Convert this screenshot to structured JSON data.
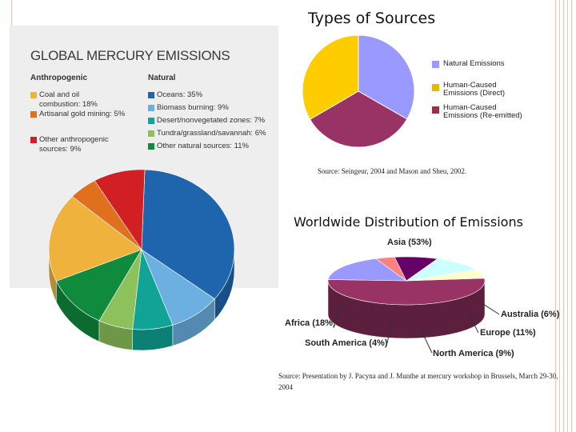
{
  "slide": {
    "types_title": "Types of Sources",
    "types_source": "Source: Seingeur, 2004 and Mason and Sheu, 2002.",
    "world_title": "Worldwide Distribution of Emissions",
    "world_source": "Source: Presentation by J. Pacyna and J. Munthe at mercury workshop in Brussels, March 29-30, 2004"
  },
  "chart_data": [
    {
      "type": "pie",
      "title": "GLOBAL MERCURY EMISSIONS",
      "groups": [
        {
          "name": "Anthropogenic",
          "items": [
            {
              "label": "Coal and oil combustion: 18%",
              "line1": "Coal and oil",
              "line2": "combustion: 18%",
              "value": 18,
              "color": "#eeb23d"
            },
            {
              "label": "Artisanal gold mining: 5%",
              "line1": "Artisanal gold mining: 5%",
              "line2": "",
              "value": 5,
              "color": "#e0701e"
            },
            {
              "label": "Other anthropogenic sources: 9%",
              "line1": "Other anthropogenic",
              "line2": "sources: 9%",
              "value": 9,
              "color": "#d11f24"
            }
          ]
        },
        {
          "name": "Natural",
          "items": [
            {
              "label": "Oceans: 35%",
              "line1": "Oceans: 35%",
              "line2": "",
              "value": 35,
              "color": "#1e65ad"
            },
            {
              "label": "Biomass burning: 9%",
              "line1": "Biomass burning: 9%",
              "line2": "",
              "value": 9,
              "color": "#6cb0e2"
            },
            {
              "label": "Desert/nonvegetated zones: 7%",
              "line1": "Desert/nonvegetated zones: 7%",
              "line2": "",
              "value": 7,
              "color": "#11a496"
            },
            {
              "label": "Tundra/grassland/savannah: 6%",
              "line1": "Tundra/grassland/savannah: 6%",
              "line2": "",
              "value": 6,
              "color": "#8dc15b"
            },
            {
              "label": "Other natural sources: 11%",
              "line1": "Other natural sources: 11%",
              "line2": "",
              "value": 11,
              "color": "#108a3c"
            }
          ]
        }
      ]
    },
    {
      "type": "pie",
      "title": "Types of Sources",
      "slices": [
        {
          "label": "Natural Emissions",
          "line1": "Natural Emissions",
          "line2": "",
          "value": 33.3,
          "color": "#9999ff"
        },
        {
          "label": "Human-Caused Emissions (Re-emitted)",
          "line1": "Human-Caused",
          "line2": "Emissions (Re-emitted)",
          "value": 33.3,
          "color": "#993366"
        },
        {
          "label": "Human-Caused Emissions (Direct)",
          "line1": "Human-Caused",
          "line2": "Emissions (Direct)",
          "value": 33.4,
          "color": "#ffcc00"
        }
      ],
      "legend_order": [
        0,
        2,
        1
      ],
      "legend_colors": [
        "#9999ff",
        "#e6b800",
        "#993344"
      ]
    },
    {
      "type": "pie",
      "title": "Worldwide Distribution of Emissions",
      "slices": [
        {
          "label": "Asia (53%)",
          "value": 53,
          "color": "#993366"
        },
        {
          "label": "Africa (18%)",
          "value": 18,
          "color": "#9999ff"
        },
        {
          "label": "South America (4%)",
          "value": 4,
          "color": "#ff8080"
        },
        {
          "label": "North America (9%)",
          "value": 9,
          "color": "#660066"
        },
        {
          "label": "Europe (11%)",
          "value": 11,
          "color": "#ccffff"
        },
        {
          "label": "Australia (6%)",
          "value": 6,
          "color": "#ffffcc"
        }
      ]
    }
  ]
}
